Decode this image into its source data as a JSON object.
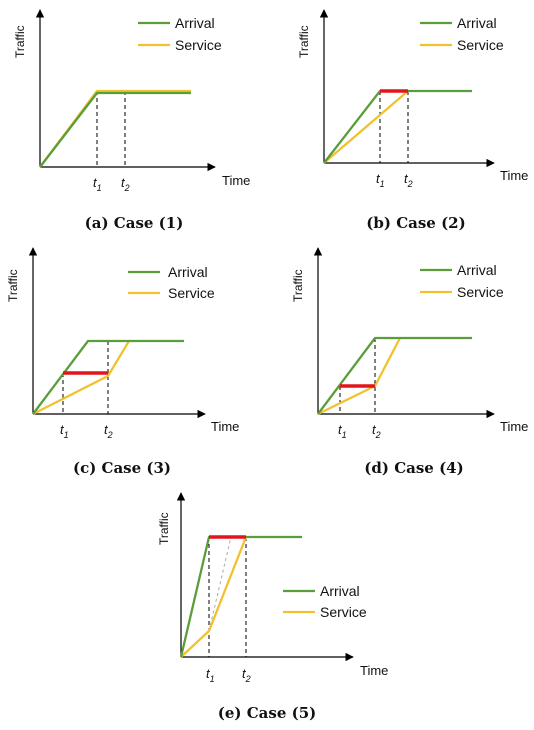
{
  "labels": {
    "y_axis": "Traffic",
    "x_axis": "Time",
    "arrival": "Arrival",
    "service": "Service",
    "t": "t",
    "sub1": "1",
    "sub2": "2"
  },
  "colors": {
    "arrival": "#5a9e3c",
    "service": "#f2c12e",
    "highlight": "#e0161c"
  },
  "captions": {
    "a": "(a) Case (1)",
    "b": "(b) Case (2)",
    "c": "(c) Case (3)",
    "d": "(d) Case (4)",
    "e": "(e) Case (5)"
  }
}
